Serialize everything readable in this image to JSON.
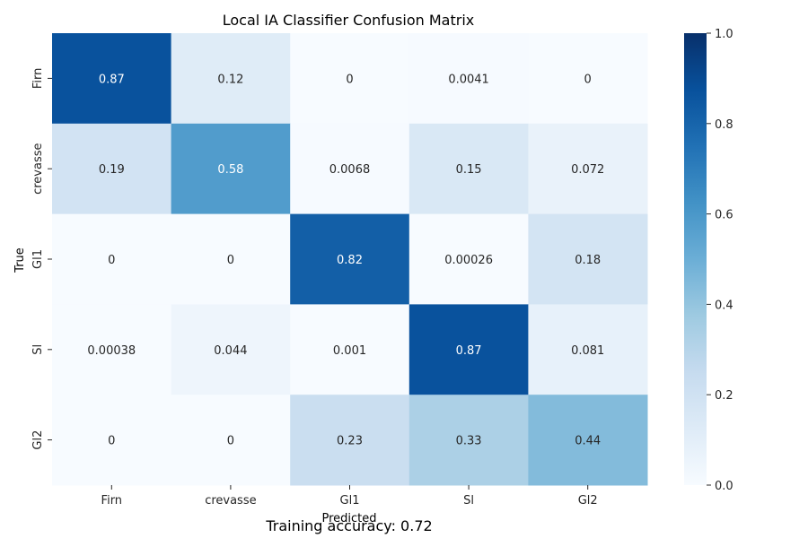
{
  "chart_data": {
    "type": "heatmap",
    "title": "Local IA Classifier Confusion Matrix",
    "xlabel": "Predicted",
    "ylabel": "True",
    "x_categories": [
      "Firn",
      "crevasse",
      "Gl1",
      "Sl",
      "Gl2"
    ],
    "y_categories": [
      "Firn",
      "crevasse",
      "Gl1",
      "Sl",
      "Gl2"
    ],
    "values": [
      [
        0.87,
        0.12,
        0,
        0.0041,
        0
      ],
      [
        0.19,
        0.58,
        0.0068,
        0.15,
        0.072
      ],
      [
        0,
        0,
        0.82,
        0.00026,
        0.18
      ],
      [
        0.00038,
        0.044,
        0.001,
        0.87,
        0.081
      ],
      [
        0,
        0,
        0.23,
        0.33,
        0.44
      ]
    ],
    "value_labels": [
      [
        "0.87",
        "0.12",
        "0",
        "0.0041",
        "0"
      ],
      [
        "0.19",
        "0.58",
        "0.0068",
        "0.15",
        "0.072"
      ],
      [
        "0",
        "0",
        "0.82",
        "0.00026",
        "0.18"
      ],
      [
        "0.00038",
        "0.044",
        "0.001",
        "0.87",
        "0.081"
      ],
      [
        "0",
        "0",
        "0.23",
        "0.33",
        "0.44"
      ]
    ],
    "colorbar": {
      "range": [
        0,
        1
      ],
      "ticks": [
        "0.0",
        "0.2",
        "0.4",
        "0.6",
        "0.8",
        "1.0"
      ],
      "colormap": "Blues",
      "low_color": "#f7fbff",
      "high_color": "#08306b"
    }
  },
  "footer": {
    "text": "Training accuracy: 0.72"
  }
}
